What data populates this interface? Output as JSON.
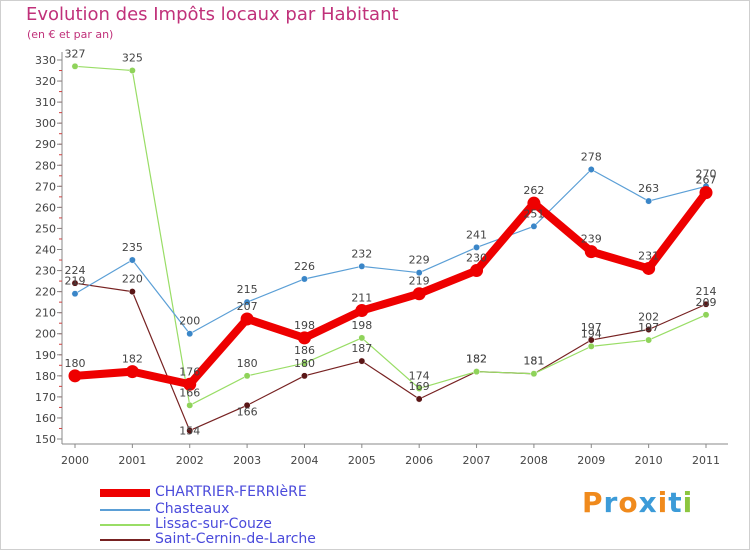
{
  "header": {
    "title": "Evolution des Impôts locaux par Habitant",
    "subtitle": "(en € et par an)"
  },
  "chart_data": {
    "type": "line",
    "title": "Evolution des Impôts locaux par Habitant",
    "subtitle": "(en € et par an)",
    "xlabel": "",
    "ylabel": "",
    "x": [
      "2000",
      "2001",
      "2002",
      "2003",
      "2004",
      "2005",
      "2006",
      "2007",
      "2008",
      "2009",
      "2010",
      "2011"
    ],
    "ylim": [
      150,
      330
    ],
    "yticks": [
      150,
      160,
      170,
      180,
      190,
      200,
      210,
      220,
      230,
      240,
      250,
      260,
      270,
      280,
      290,
      300,
      310,
      320,
      330
    ],
    "grid": false,
    "series": [
      {
        "name": "CHARTRIER-FERRIèRE",
        "color": "#ee0000",
        "values": [
          180,
          182,
          176,
          207,
          198,
          211,
          219,
          230,
          262,
          239,
          231,
          267
        ]
      },
      {
        "name": "Chasteaux",
        "color": "#5b9fd6",
        "values": [
          219,
          235,
          200,
          215,
          226,
          232,
          229,
          241,
          251,
          278,
          263,
          270
        ]
      },
      {
        "name": "Lissac-sur-Couze",
        "color": "#99dd66",
        "values": [
          327,
          325,
          166,
          180,
          186,
          198,
          174,
          182,
          181,
          194,
          197,
          209
        ]
      },
      {
        "name": "Saint-Cernin-de-Larche",
        "color": "#772222",
        "values": [
          224,
          220,
          154,
          166,
          180,
          187,
          169,
          182,
          181,
          197,
          202,
          214
        ]
      }
    ]
  },
  "branding": {
    "logo_letters": [
      "P",
      "r",
      "o",
      "x",
      "i",
      "t",
      "i"
    ],
    "logo_colors": [
      "#f08a1c",
      "#3c9bd8",
      "#f08a1c",
      "#3c9bd8",
      "#f08a1c",
      "#3c9bd8",
      "#8cc63f"
    ]
  }
}
